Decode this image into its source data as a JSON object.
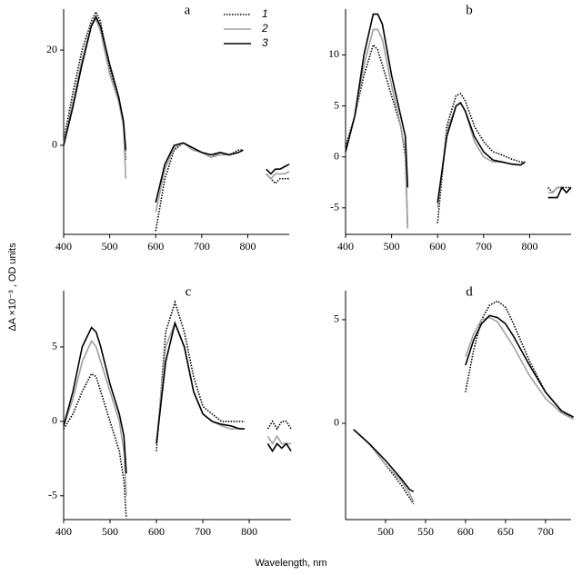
{
  "y_label": "ΔA ×10⁻³ , OD units",
  "x_label": "Wavelength, nm",
  "chart_data": [
    {
      "type": "line",
      "title": "a",
      "legend": "upper right",
      "x": [
        400,
        420,
        440,
        460,
        470,
        480,
        500,
        520,
        530,
        535,
        560,
        600,
        620,
        640,
        660,
        680,
        700,
        720,
        740,
        760,
        780,
        790,
        815,
        840,
        850,
        860,
        870,
        880,
        890
      ],
      "series": [
        {
          "name": "1",
          "color": "#000000",
          "dash": "dotted",
          "values": [
            1,
            11,
            20,
            26,
            28,
            26,
            16,
            10,
            4,
            -3,
            null,
            -18,
            -7,
            -1,
            0.5,
            -0.5,
            -1.5,
            -2.5,
            -1.5,
            -2,
            -1,
            -1,
            null,
            -6,
            -7,
            -8,
            -7,
            -7,
            -7
          ]
        },
        {
          "name": "2",
          "color": "#a0a0a0",
          "dash": "solid",
          "values": [
            0.5,
            9,
            18,
            25,
            26.5,
            24,
            15,
            9,
            4,
            -7,
            null,
            -14,
            -5,
            -0.5,
            0.5,
            -1,
            -1.5,
            -2.5,
            -2,
            -2,
            -1.5,
            -1,
            null,
            -6,
            -7,
            -6,
            -6,
            -6,
            -5.5
          ]
        },
        {
          "name": "3",
          "color": "#000000",
          "dash": "solid",
          "values": [
            0,
            8,
            17,
            25,
            27,
            25,
            17,
            10,
            5,
            -1,
            null,
            -12,
            -4,
            0,
            0.5,
            -0.5,
            -1.5,
            -2,
            -1.5,
            -2,
            -1.5,
            -1,
            null,
            -5,
            -6,
            -5,
            -5,
            -4.5,
            -4
          ]
        }
      ],
      "xlim": [
        400,
        890
      ],
      "xticks": [
        400,
        500,
        600,
        700,
        800
      ],
      "ylim": [
        -18.7,
        28.6
      ],
      "yticks": [
        0,
        20
      ]
    },
    {
      "type": "line",
      "title": "b",
      "x": [
        400,
        420,
        440,
        460,
        470,
        480,
        500,
        520,
        530,
        535,
        560,
        600,
        620,
        640,
        650,
        660,
        680,
        700,
        720,
        740,
        760,
        780,
        790,
        815,
        840,
        850,
        860,
        870,
        880,
        890
      ],
      "series": [
        {
          "color": "#000000",
          "dash": "dotted",
          "values": [
            1,
            4,
            8,
            11,
            10.5,
            9,
            6,
            3,
            0,
            -7,
            null,
            -6.5,
            3,
            6,
            6.2,
            5.5,
            3,
            1.5,
            0.5,
            0.2,
            -0.2,
            -0.5,
            -0.5,
            null,
            -3,
            -3.5,
            -3,
            -3,
            -3,
            -3
          ]
        },
        {
          "color": "#a0a0a0",
          "dash": "solid",
          "values": [
            0.5,
            4,
            9,
            12.5,
            12.5,
            11.5,
            7,
            3,
            0.5,
            -7,
            null,
            -5,
            2.5,
            5,
            5.3,
            4.5,
            1.5,
            0,
            -0.5,
            -0.5,
            -0.7,
            -0.8,
            -0.5,
            null,
            -3.5,
            -3.5,
            -3,
            -3,
            -3.5,
            -3
          ]
        },
        {
          "color": "#000000",
          "dash": "solid",
          "values": [
            0.5,
            4,
            10,
            14,
            14,
            13,
            8,
            4,
            2,
            -3,
            null,
            -4.5,
            2,
            5,
            5.3,
            4.5,
            2,
            0.5,
            -0.3,
            -0.5,
            -0.7,
            -0.8,
            -0.5,
            null,
            -4,
            -4,
            -4,
            -3,
            -3.5,
            -3
          ]
        }
      ],
      "xlim": [
        400,
        890
      ],
      "xticks": [
        400,
        500,
        600,
        700,
        800
      ],
      "ylim": [
        -7.6,
        14.5
      ],
      "yticks": [
        -5,
        0,
        5,
        10
      ]
    },
    {
      "type": "line",
      "title": "c",
      "x": [
        400,
        420,
        440,
        460,
        470,
        480,
        500,
        520,
        530,
        535,
        560,
        600,
        620,
        640,
        660,
        680,
        700,
        720,
        740,
        760,
        780,
        790,
        815,
        840,
        850,
        860,
        870,
        880,
        890
      ],
      "series": [
        {
          "color": "#000000",
          "dash": "dotted",
          "values": [
            -0.5,
            0.5,
            2,
            3.2,
            3,
            2,
            0,
            -2,
            -4,
            -6.5,
            null,
            -2,
            6,
            8,
            6,
            3,
            1,
            0.5,
            0,
            0,
            0,
            0,
            null,
            -0.5,
            0,
            -0.5,
            0,
            0,
            -0.5
          ]
        },
        {
          "color": "#a0a0a0",
          "dash": "solid",
          "values": [
            -0.3,
            1.5,
            4,
            5.4,
            5,
            4,
            2,
            0,
            -2,
            -5,
            null,
            -1.5,
            5,
            6.6,
            5,
            2,
            0.5,
            0,
            -0.3,
            -0.5,
            -0.5,
            -0.5,
            null,
            -1,
            -1.5,
            -1,
            -1.5,
            -1.5,
            -1.5
          ]
        },
        {
          "color": "#000000",
          "dash": "solid",
          "values": [
            -0.3,
            2,
            5,
            6.3,
            6,
            5,
            2.5,
            0.5,
            -1,
            -3.5,
            null,
            -1.5,
            4,
            6.6,
            5,
            2,
            0.5,
            0,
            -0.2,
            -0.3,
            -0.5,
            -0.5,
            null,
            -1.5,
            -2,
            -1.5,
            -1.8,
            -1.5,
            -2
          ]
        }
      ],
      "xlim": [
        400,
        890
      ],
      "xticks": [
        400,
        500,
        600,
        700,
        800
      ],
      "ylim": [
        -6.6,
        8.78
      ],
      "yticks": [
        -5,
        0,
        5
      ]
    },
    {
      "type": "line",
      "title": "d",
      "x": [
        460,
        480,
        500,
        520,
        530,
        535,
        560,
        600,
        610,
        620,
        630,
        640,
        650,
        660,
        680,
        700,
        720,
        735
      ],
      "series": [
        {
          "color": "#000000",
          "dash": "dotted",
          "values": [
            -0.3,
            -1,
            -2,
            -3,
            -3.6,
            -3.9,
            null,
            1.5,
            3.5,
            5,
            5.7,
            5.9,
            5.6,
            4.8,
            3,
            1.5,
            0.6,
            0.2
          ]
        },
        {
          "color": "#a0a0a0",
          "dash": "solid",
          "values": [
            -0.3,
            -1,
            -2,
            -2.8,
            -3.4,
            -3.8,
            null,
            3.2,
            4.3,
            5,
            5.1,
            4.9,
            4.3,
            3.7,
            2.3,
            1.2,
            0.5,
            0.2
          ]
        },
        {
          "color": "#000000",
          "dash": "solid",
          "values": [
            -0.3,
            -1,
            -1.8,
            -2.7,
            -3.2,
            -3.3,
            null,
            2.8,
            4,
            4.8,
            5.2,
            5.1,
            4.8,
            4.2,
            2.8,
            1.5,
            0.6,
            0.3
          ]
        }
      ],
      "xlim": [
        450,
        732
      ],
      "xticks": [
        500,
        550,
        600,
        650,
        700
      ],
      "ylim": [
        -4.65,
        6.4
      ],
      "yticks": [
        0,
        5
      ]
    }
  ]
}
